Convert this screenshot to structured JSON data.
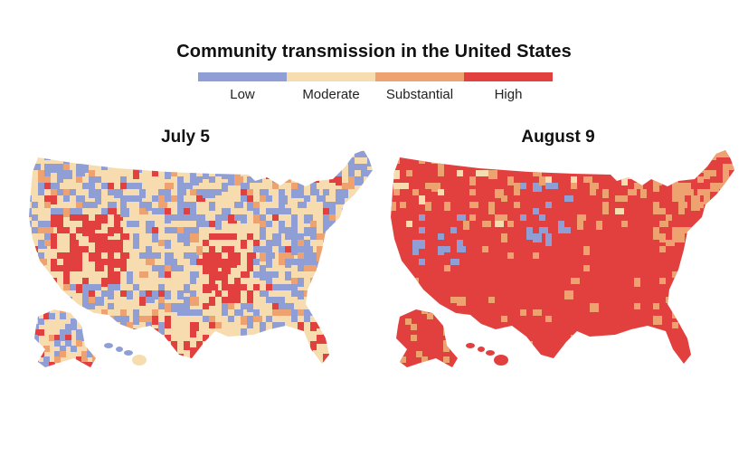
{
  "title": "Community transmission in the United States",
  "legend": [
    {
      "label": "Low",
      "color": "#8f9fd6"
    },
    {
      "label": "Moderate",
      "color": "#f7dcb0"
    },
    {
      "label": "Substantial",
      "color": "#eda26f"
    },
    {
      "label": "High",
      "color": "#e1403e"
    }
  ],
  "maps": [
    {
      "date": "July 5"
    },
    {
      "date": "August 9"
    }
  ]
}
